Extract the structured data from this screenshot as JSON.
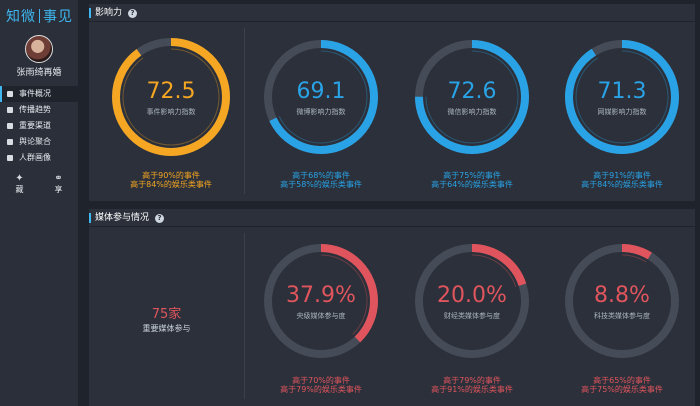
{
  "app": {
    "logo_left": "知微",
    "logo_right": "事见"
  },
  "user": {
    "name": "张雨绮再婚"
  },
  "sidebar": {
    "items": [
      {
        "label": "事件概况",
        "icon": "overview-icon",
        "active": true
      },
      {
        "label": "传播趋势",
        "icon": "trend-chart-icon",
        "active": false
      },
      {
        "label": "重要渠道",
        "icon": "channel-icon",
        "active": false
      },
      {
        "label": "舆论聚合",
        "icon": "opinion-bubble-icon",
        "active": false
      },
      {
        "label": "人群画像",
        "icon": "portrait-icon",
        "active": false
      }
    ],
    "tools": [
      {
        "label": "藏",
        "icon": "collect-icon"
      },
      {
        "label": "享",
        "icon": "share-icon"
      }
    ]
  },
  "influence": {
    "title": "影响力",
    "help": "?",
    "gauges": [
      {
        "value": "72.5",
        "fraction": 0.9,
        "label": "事件影响力指数",
        "caption1": "高于90%的事件",
        "caption2": "高于84%的娱乐类事件",
        "color": "#f5a623"
      },
      {
        "value": "69.1",
        "fraction": 0.68,
        "label": "微博影响力指数",
        "caption1": "高于68%的事件",
        "caption2": "高于58%的娱乐类事件",
        "color": "#2aa3e6"
      },
      {
        "value": "72.6",
        "fraction": 0.75,
        "label": "微信影响力指数",
        "caption1": "高于75%的事件",
        "caption2": "高于64%的娱乐类事件",
        "color": "#2aa3e6"
      },
      {
        "value": "71.3",
        "fraction": 0.91,
        "label": "网媒影响力指数",
        "caption1": "高于91%的事件",
        "caption2": "高于84%的娱乐类事件",
        "color": "#2aa3e6"
      }
    ]
  },
  "media": {
    "title": "媒体参与情况",
    "help": "?",
    "count": {
      "value": "75家",
      "label": "重要媒体参与"
    },
    "gauges": [
      {
        "value": "37.9%",
        "fraction": 0.379,
        "label": "央级媒体参与度",
        "caption1": "高于70%的事件",
        "caption2": "高于79%的娱乐类事件",
        "color": "#e0555d"
      },
      {
        "value": "20.0%",
        "fraction": 0.2,
        "label": "财经类媒体参与度",
        "caption1": "高于79%的事件",
        "caption2": "高于91%的娱乐类事件",
        "color": "#e0555d"
      },
      {
        "value": "8.8%",
        "fraction": 0.088,
        "label": "科技类媒体参与度",
        "caption1": "高于65%的事件",
        "caption2": "高于75%的娱乐类事件",
        "color": "#e0555d"
      }
    ]
  },
  "colors": {
    "track": "#454b57",
    "accent": "#3fb6ee",
    "orange": "#f5a623",
    "blue": "#2aa3e6",
    "red": "#e0555d"
  }
}
